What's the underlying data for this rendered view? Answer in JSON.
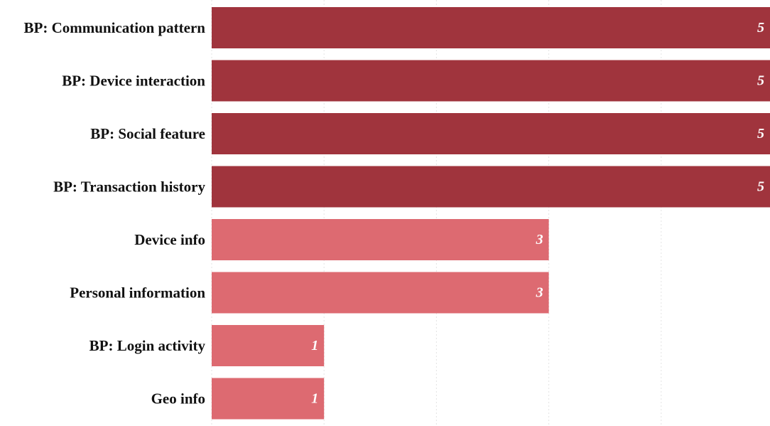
{
  "chart_data": {
    "type": "bar",
    "orientation": "horizontal",
    "categories": [
      "BP: Communication pattern",
      "BP: Device interaction",
      "BP: Social feature",
      "BP: Transaction history",
      "Device info",
      "Personal information",
      "BP: Login activity",
      "Geo info"
    ],
    "values": [
      5,
      5,
      5,
      5,
      3,
      3,
      1,
      1
    ],
    "value_labels": [
      "5",
      "5",
      "5",
      "5",
      "3",
      "3",
      "1",
      "1"
    ],
    "colors": {
      "high": "#a0343d",
      "low": "#dd6a71"
    },
    "color_threshold": 5,
    "xlim": [
      0,
      5
    ],
    "grid": true,
    "legend": "none",
    "title": "",
    "xlabel": "",
    "ylabel": ""
  }
}
